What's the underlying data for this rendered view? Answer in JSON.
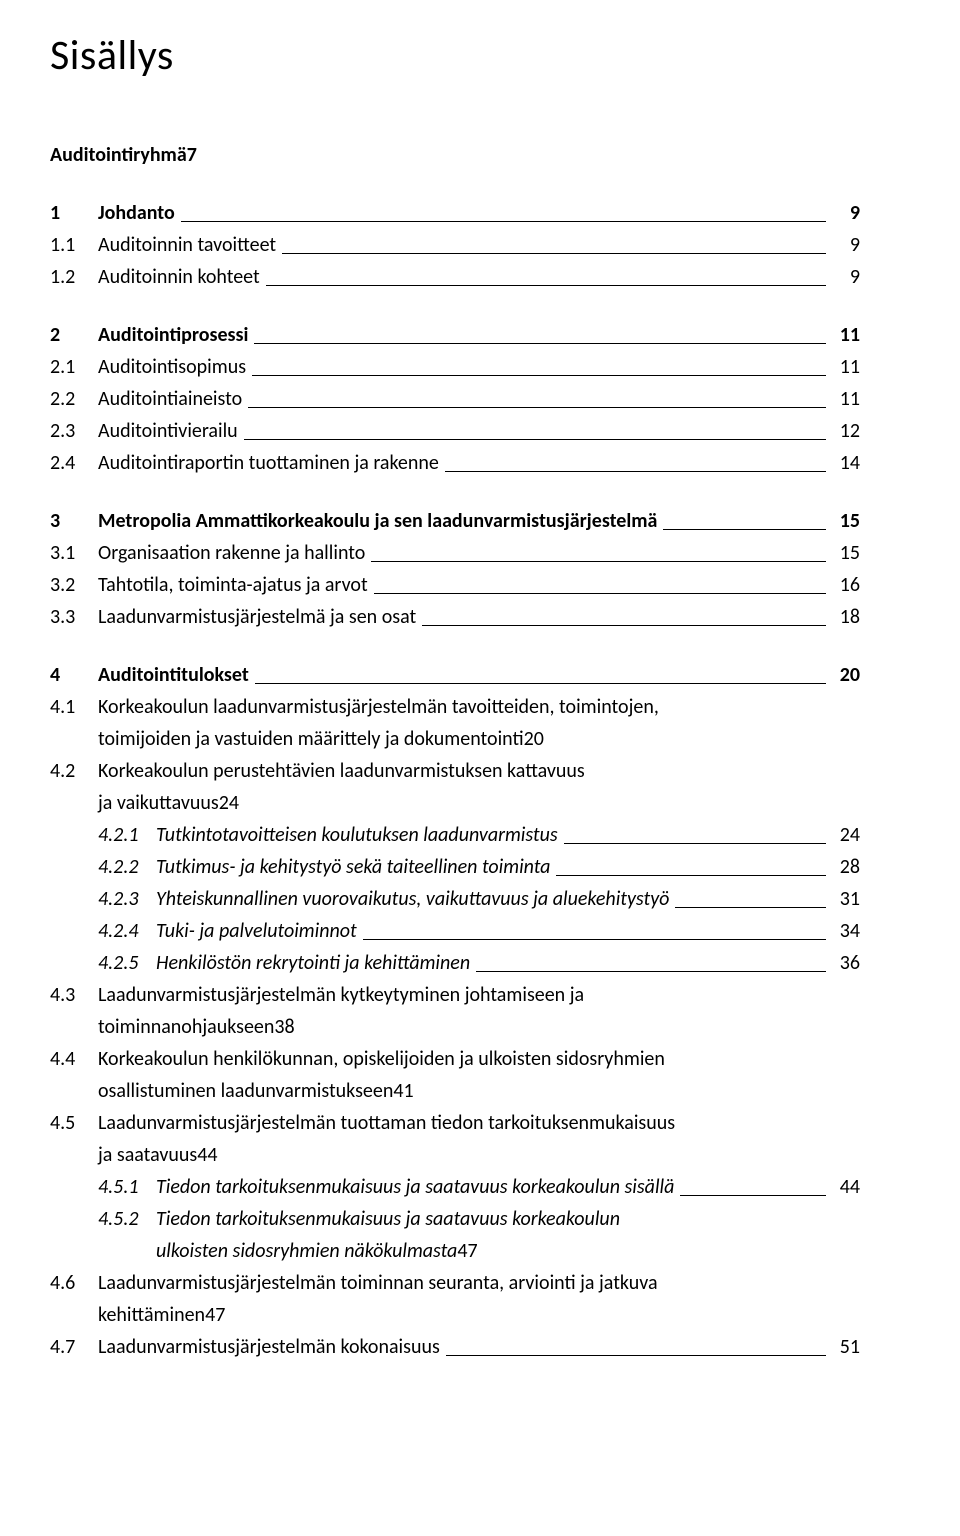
{
  "title": "Sisällys",
  "entries": [
    {
      "type": "line-nonum",
      "bold": true,
      "label": "Auditointiryhmä",
      "page": "7"
    },
    {
      "type": "gap"
    },
    {
      "type": "line",
      "num": "1",
      "bold": true,
      "label": "Johdanto",
      "page": "9"
    },
    {
      "type": "line",
      "num": "1.1",
      "label": "Auditoinnin tavoitteet",
      "page": "9"
    },
    {
      "type": "line",
      "num": "1.2",
      "label": "Auditoinnin kohteet",
      "page": "9"
    },
    {
      "type": "gap"
    },
    {
      "type": "line",
      "num": "2",
      "bold": true,
      "label": "Auditointiprosessi",
      "page": "11"
    },
    {
      "type": "line",
      "num": "2.1",
      "label": "Auditointisopimus",
      "page": "11"
    },
    {
      "type": "line",
      "num": "2.2",
      "label": "Auditointiaineisto",
      "page": "11"
    },
    {
      "type": "line",
      "num": "2.3",
      "label": "Auditointivierailu",
      "page": "12"
    },
    {
      "type": "line",
      "num": "2.4",
      "label": "Auditointiraportin tuottaminen ja rakenne",
      "page": "14"
    },
    {
      "type": "gap"
    },
    {
      "type": "line",
      "num": "3",
      "bold": true,
      "label": "Metropolia Ammattikorkeakoulu ja sen laadunvarmistusjärjestelmä",
      "page": "15"
    },
    {
      "type": "line",
      "num": "3.1",
      "label": "Organisaation rakenne ja hallinto",
      "page": "15"
    },
    {
      "type": "line",
      "num": "3.2",
      "label": "Tahtotila, toiminta-ajatus ja arvot",
      "page": "16"
    },
    {
      "type": "line",
      "num": "3.3",
      "label": "Laadunvarmistusjärjestelmä ja sen osat",
      "page": "18"
    },
    {
      "type": "gap"
    },
    {
      "type": "line",
      "num": "4",
      "bold": true,
      "label": "Auditointitulokset",
      "page": "20"
    },
    {
      "type": "plain",
      "num": "4.1",
      "label": "Korkeakoulun laadunvarmistusjärjestelmän tavoitteiden, toimintojen,"
    },
    {
      "type": "cont",
      "label": "toimijoiden ja vastuiden määrittely ja dokumentointi",
      "page": "20"
    },
    {
      "type": "plain",
      "num": "4.2",
      "label": "Korkeakoulun perustehtävien laadunvarmistuksen kattavuus"
    },
    {
      "type": "cont",
      "label": "ja vaikuttavuus",
      "page": "24"
    },
    {
      "type": "line",
      "indent": 2,
      "italic": true,
      "num": "4.2.1",
      "label": "Tutkintotavoitteisen koulutuksen laadunvarmistus",
      "page": "24"
    },
    {
      "type": "line",
      "indent": 2,
      "italic": true,
      "num": "4.2.2",
      "label": "Tutkimus- ja kehitystyö sekä taiteellinen toiminta",
      "page": "28"
    },
    {
      "type": "line",
      "indent": 2,
      "italic": true,
      "num": "4.2.3",
      "label": "Yhteiskunnallinen vuorovaikutus, vaikuttavuus ja aluekehitystyö",
      "page": "31"
    },
    {
      "type": "line",
      "indent": 2,
      "italic": true,
      "num": "4.2.4",
      "label": "Tuki- ja palvelutoiminnot",
      "page": "34"
    },
    {
      "type": "line",
      "indent": 2,
      "italic": true,
      "num": "4.2.5",
      "label": "Henkilöstön rekrytointi ja kehittäminen",
      "page": "36"
    },
    {
      "type": "plain",
      "num": "4.3",
      "label": "Laadunvarmistusjärjestelmän kytkeytyminen johtamiseen ja"
    },
    {
      "type": "cont",
      "label": "toiminnanohjaukseen",
      "page": "38"
    },
    {
      "type": "plain",
      "num": "4.4",
      "label": "Korkeakoulun henkilökunnan, opiskelijoiden ja ulkoisten sidosryhmien"
    },
    {
      "type": "cont",
      "label": "osallistuminen laadunvarmistukseen",
      "page": "41"
    },
    {
      "type": "plain",
      "num": "4.5",
      "label": "Laadunvarmistusjärjestelmän tuottaman tiedon tarkoituksenmukaisuus"
    },
    {
      "type": "cont",
      "label": "ja saatavuus",
      "page": "44"
    },
    {
      "type": "line",
      "indent": 2,
      "italic": true,
      "num": "4.5.1",
      "label": "Tiedon tarkoituksenmukaisuus ja saatavuus korkeakoulun sisällä",
      "page": "44"
    },
    {
      "type": "plain",
      "indent": 2,
      "italic": true,
      "num": "4.5.2",
      "label": "Tiedon tarkoituksenmukaisuus ja saatavuus korkeakoulun"
    },
    {
      "type": "cont",
      "indent": 2,
      "italic": true,
      "label": "ulkoisten sidosryhmien näkökulmasta",
      "page": "47"
    },
    {
      "type": "plain",
      "num": "4.6",
      "label": "Laadunvarmistusjärjestelmän toiminnan seuranta, arviointi ja jatkuva"
    },
    {
      "type": "cont",
      "label": "kehittäminen",
      "page": "47"
    },
    {
      "type": "line",
      "num": "4.7",
      "label": "Laadunvarmistusjärjestelmän kokonaisuus",
      "page": "51"
    }
  ]
}
